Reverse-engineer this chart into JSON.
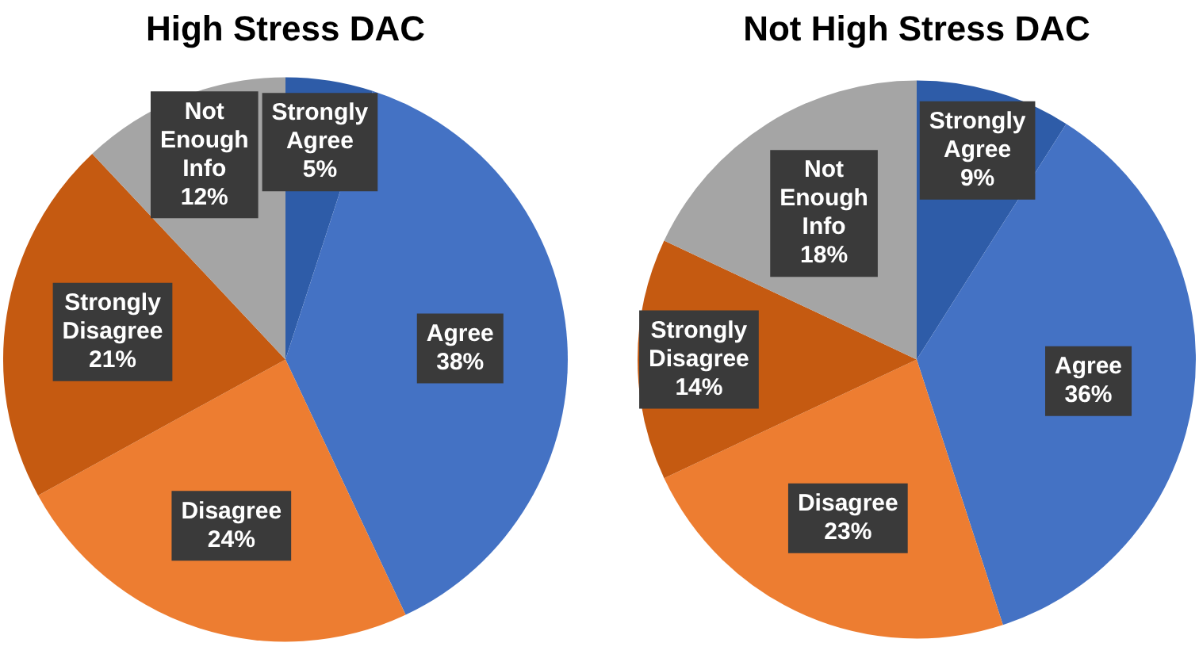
{
  "chart_data": [
    {
      "type": "pie",
      "title": "High Stress DAC",
      "categories": [
        "Strongly Agree",
        "Agree",
        "Disagree",
        "Strongly Disagree",
        "Not Enough Info"
      ],
      "values": [
        5,
        38,
        24,
        21,
        12
      ],
      "colors": [
        "#2e5ca8",
        "#4472c4",
        "#ed7d31",
        "#c55a11",
        "#a5a5a5"
      ],
      "value_labels": [
        "5%",
        "38%",
        "24%",
        "21%",
        "12%"
      ]
    },
    {
      "type": "pie",
      "title": "Not High Stress DAC",
      "categories": [
        "Strongly Agree",
        "Agree",
        "Disagree",
        "Strongly Disagree",
        "Not Enough Info"
      ],
      "values": [
        9,
        36,
        23,
        14,
        18
      ],
      "colors": [
        "#2e5ca8",
        "#4472c4",
        "#ed7d31",
        "#c55a11",
        "#a5a5a5"
      ],
      "value_labels": [
        "9%",
        "36%",
        "23%",
        "14%",
        "18%"
      ]
    }
  ]
}
